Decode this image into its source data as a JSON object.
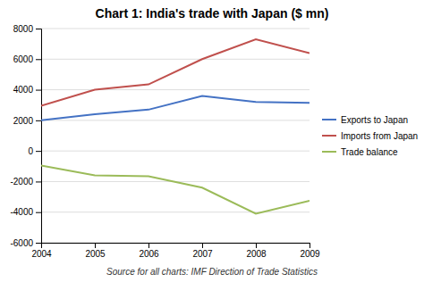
{
  "chart_data": {
    "type": "line",
    "title": "Chart 1: India's trade with Japan ($ mn)",
    "x": [
      2004,
      2005,
      2006,
      2007,
      2008,
      2009
    ],
    "series": [
      {
        "name": "Exports to Japan",
        "color": "#4472C4",
        "values": [
          2000,
          2400,
          2700,
          3600,
          3200,
          3150
        ]
      },
      {
        "name": "Imports from Japan",
        "color": "#C0504D",
        "values": [
          2950,
          4000,
          4350,
          6000,
          7300,
          6400
        ]
      },
      {
        "name": "Trade balance",
        "color": "#9BBB59",
        "values": [
          -950,
          -1600,
          -1650,
          -2400,
          -4100,
          -3250
        ]
      }
    ],
    "xlim": [
      2004,
      2009
    ],
    "xticks": [
      2004,
      2005,
      2006,
      2007,
      2008,
      2009
    ],
    "ylim": [
      -6000,
      8000
    ],
    "yticks": [
      -6000,
      -4000,
      -2000,
      0,
      2000,
      4000,
      6000,
      8000
    ],
    "grid": true,
    "legend": "right",
    "annotations": [
      "Source for all charts: IMF Direction of Trade Statistics"
    ]
  }
}
